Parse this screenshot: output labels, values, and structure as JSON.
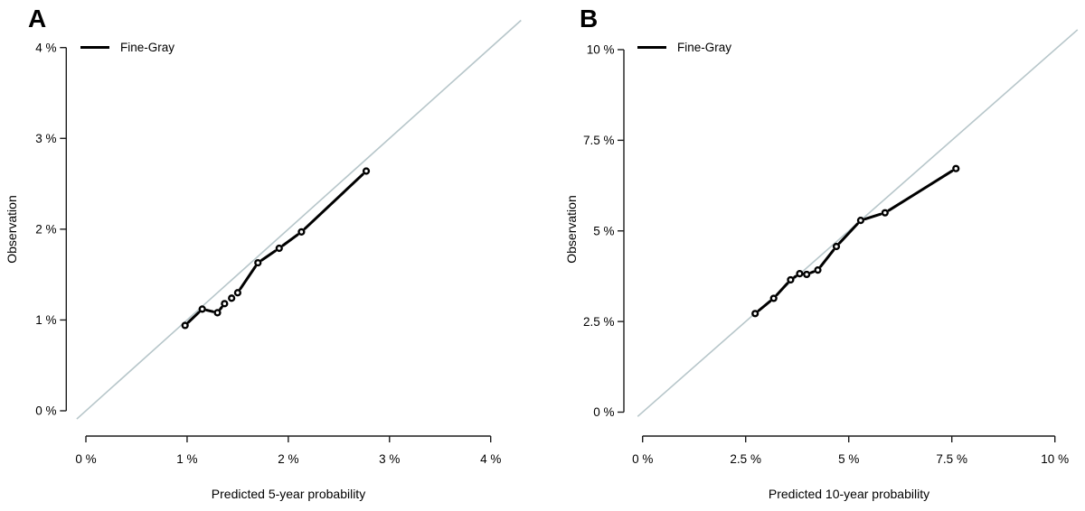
{
  "colors": {
    "axis": "#1c1c1c",
    "text": "#000000",
    "series": "#000000",
    "diagonal": "#b7c6ca",
    "background": "#ffffff"
  },
  "chart_data": [
    {
      "type": "line",
      "panel_label": "A",
      "xlabel": "Predicted 5-year probability",
      "ylabel": "Observation",
      "legend": {
        "label": "Fine-Gray",
        "position": "top-left"
      },
      "xlim": [
        0,
        4
      ],
      "ylim": [
        0,
        4
      ],
      "grid": false,
      "reference_line": "identity y=x",
      "x_ticks": [
        {
          "value": 0,
          "label": "0 %"
        },
        {
          "value": 1,
          "label": "1 %"
        },
        {
          "value": 2,
          "label": "2 %"
        },
        {
          "value": 3,
          "label": "3 %"
        },
        {
          "value": 4,
          "label": "4 %"
        }
      ],
      "y_ticks": [
        {
          "value": 0,
          "label": "0 %"
        },
        {
          "value": 1,
          "label": "1 %"
        },
        {
          "value": 2,
          "label": "2 %"
        },
        {
          "value": 3,
          "label": "3 %"
        },
        {
          "value": 4,
          "label": "4 %"
        }
      ],
      "series": [
        {
          "name": "Fine-Gray",
          "marker": "circle",
          "points": [
            [
              0.98,
              0.94
            ],
            [
              1.15,
              1.12
            ],
            [
              1.3,
              1.08
            ],
            [
              1.37,
              1.18
            ],
            [
              1.44,
              1.24
            ],
            [
              1.5,
              1.3
            ],
            [
              1.7,
              1.63
            ],
            [
              1.91,
              1.79
            ],
            [
              2.13,
              1.97
            ],
            [
              2.77,
              2.64
            ]
          ]
        }
      ]
    },
    {
      "type": "line",
      "panel_label": "B",
      "xlabel": "Predicted 10-year probability",
      "ylabel": "Observation",
      "legend": {
        "label": "Fine-Gray",
        "position": "top-left"
      },
      "xlim": [
        0,
        10
      ],
      "ylim": [
        0,
        10
      ],
      "grid": false,
      "reference_line": "identity y=x",
      "x_ticks": [
        {
          "value": 0,
          "label": "0 %"
        },
        {
          "value": 2.5,
          "label": "2.5 %"
        },
        {
          "value": 5,
          "label": "5 %"
        },
        {
          "value": 7.5,
          "label": "7.5 %"
        },
        {
          "value": 10,
          "label": "10 %"
        }
      ],
      "y_ticks": [
        {
          "value": 0,
          "label": "0 %"
        },
        {
          "value": 2.5,
          "label": "2.5 %"
        },
        {
          "value": 5,
          "label": "5 %"
        },
        {
          "value": 7.5,
          "label": "7.5 %"
        },
        {
          "value": 10,
          "label": "10 %"
        }
      ],
      "series": [
        {
          "name": "Fine-Gray",
          "marker": "circle",
          "points": [
            [
              2.73,
              2.72
            ],
            [
              3.18,
              3.14
            ],
            [
              3.59,
              3.65
            ],
            [
              3.81,
              3.82
            ],
            [
              3.98,
              3.8
            ],
            [
              4.25,
              3.92
            ],
            [
              4.7,
              4.57
            ],
            [
              5.29,
              5.29
            ],
            [
              5.88,
              5.5
            ],
            [
              7.6,
              6.72
            ]
          ]
        }
      ]
    }
  ]
}
